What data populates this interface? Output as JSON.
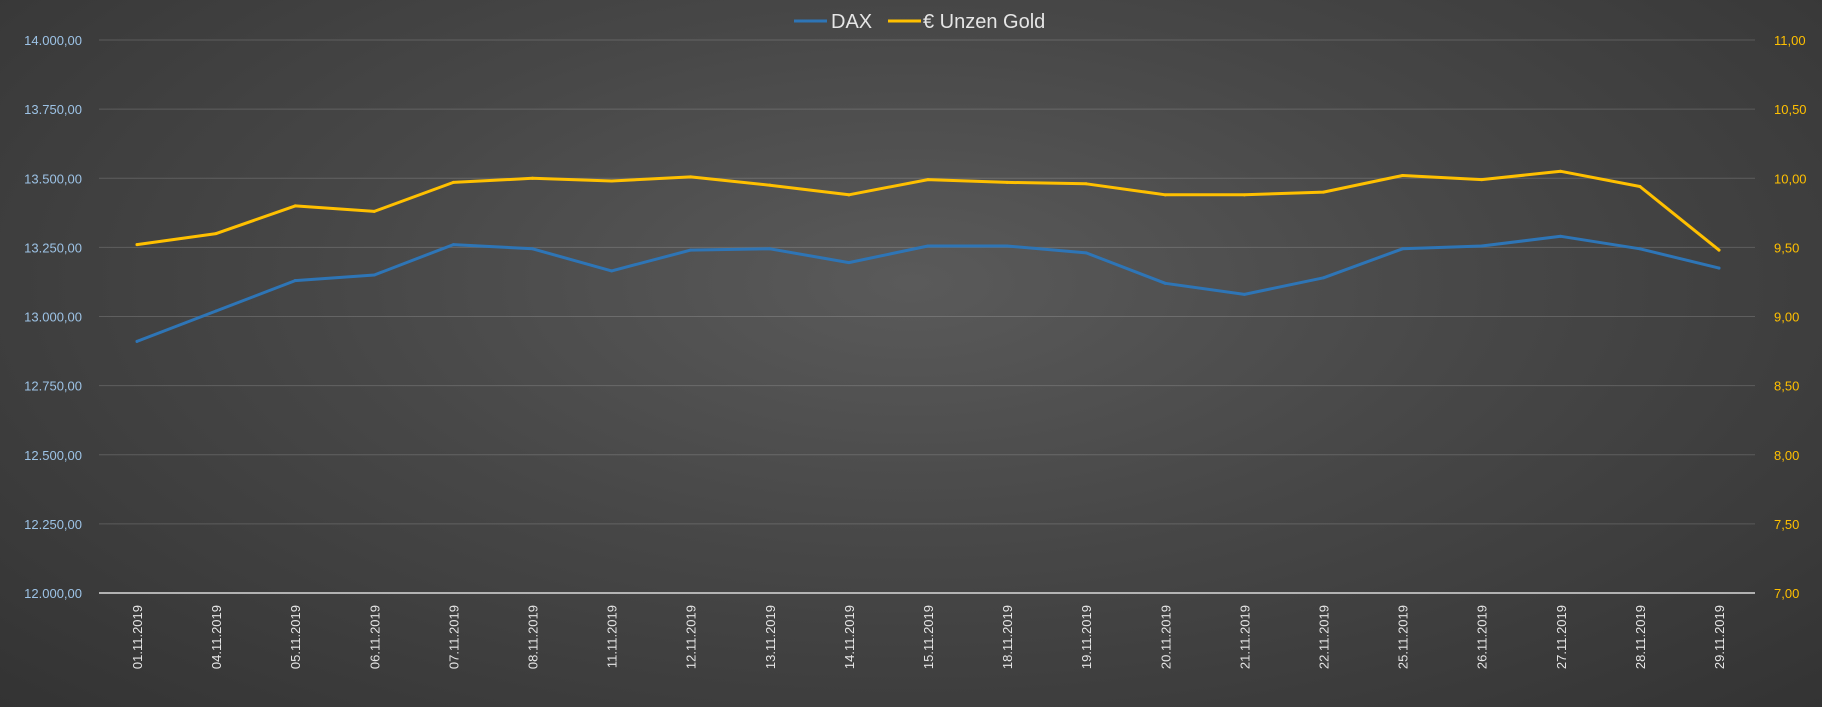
{
  "chart_data": {
    "type": "line",
    "categories": [
      "01.11.2019",
      "04.11.2019",
      "05.11.2019",
      "06.11.2019",
      "07.11.2019",
      "08.11.2019",
      "11.11.2019",
      "12.11.2019",
      "13.11.2019",
      "14.11.2019",
      "15.11.2019",
      "18.11.2019",
      "19.11.2019",
      "20.11.2019",
      "21.11.2019",
      "22.11.2019",
      "25.11.2019",
      "26.11.2019",
      "27.11.2019",
      "28.11.2019",
      "29.11.2019"
    ],
    "series": [
      {
        "name": "DAX",
        "axis": "left",
        "color": "#2e75b6",
        "values": [
          12910,
          13020,
          13130,
          13150,
          13260,
          13245,
          13165,
          13240,
          13245,
          13195,
          13255,
          13255,
          13230,
          13120,
          13080,
          13140,
          13245,
          13255,
          13290,
          13245,
          13175
        ]
      },
      {
        "name": "€ Unzen Gold",
        "axis": "right",
        "color": "#ffc000",
        "values": [
          9.52,
          9.6,
          9.8,
          9.76,
          9.97,
          10.0,
          9.98,
          10.01,
          9.95,
          9.88,
          9.99,
          9.97,
          9.96,
          9.88,
          9.88,
          9.9,
          10.02,
          9.99,
          10.05,
          9.94,
          9.48
        ]
      }
    ],
    "y_left": {
      "lim": [
        12000,
        14000
      ],
      "ticks": [
        14000,
        13750,
        13500,
        13250,
        13000,
        12750,
        12500,
        12250,
        12000
      ],
      "tick_labels": [
        "14.000,00",
        "13.750,00",
        "13.500,00",
        "13.250,00",
        "13.000,00",
        "12.750,00",
        "12.500,00",
        "12.250,00",
        "12.000,00"
      ]
    },
    "y_right": {
      "lim": [
        7.0,
        11.0
      ],
      "ticks": [
        11.0,
        10.5,
        10.0,
        9.5,
        9.0,
        8.5,
        8.0,
        7.5,
        7.0
      ],
      "tick_labels": [
        "11,00",
        "10,50",
        "10,00",
        "9,50",
        "9,00",
        "8,50",
        "8,00",
        "7,50",
        "7,00"
      ]
    },
    "legend_position": "top-center",
    "grid": true
  }
}
